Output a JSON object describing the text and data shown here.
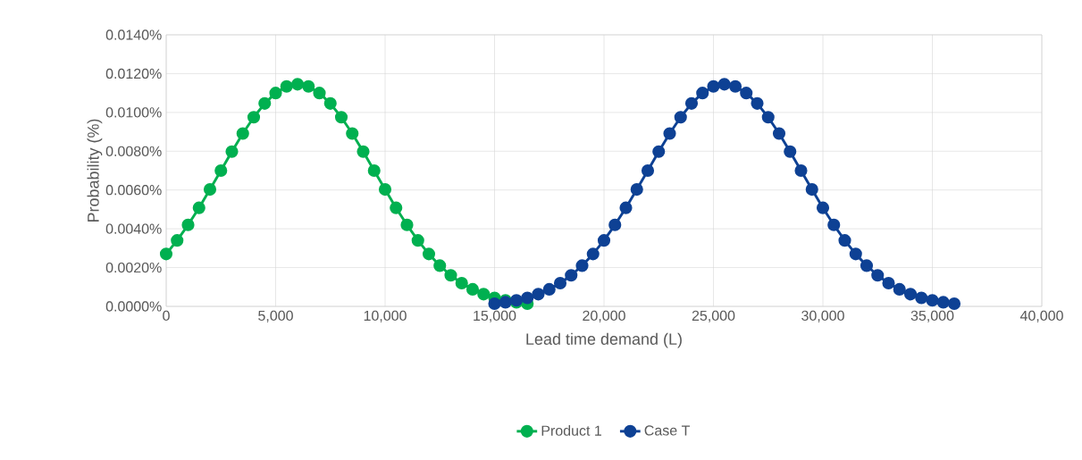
{
  "chart_data": {
    "type": "line",
    "xlabel": "Lead time demand (L)",
    "ylabel": "Probability (%)",
    "xlim": [
      0,
      40000
    ],
    "xticks": [
      0,
      {
        "value": 5000,
        "label": "5,000"
      },
      {
        "value": 10000,
        "label": "10,000"
      },
      {
        "value": 15000,
        "label": "15,000"
      },
      {
        "value": 20000,
        "label": "20,000"
      },
      {
        "value": 25000,
        "label": "25,000"
      },
      {
        "value": 30000,
        "label": "30,000"
      },
      {
        "value": 35000,
        "label": "35,000"
      },
      {
        "value": 40000,
        "label": "40,000"
      }
    ],
    "ylim": [
      0,
      0.014
    ],
    "yticks": [
      {
        "value": 0,
        "label": "0.0000%"
      },
      {
        "value": 0.002,
        "label": "0.0020%"
      },
      {
        "value": 0.004,
        "label": "0.0040%"
      },
      {
        "value": 0.006,
        "label": "0.0060%"
      },
      {
        "value": 0.008,
        "label": "0.0080%"
      },
      {
        "value": 0.01,
        "label": "0.0100%"
      },
      {
        "value": 0.012,
        "label": "0.0120%"
      },
      {
        "value": 0.014,
        "label": "0.0140%"
      }
    ],
    "grid": true,
    "legend": "bottom",
    "marker": "circle",
    "line_style": "solid",
    "series": [
      {
        "name": "Product 1",
        "color": "#00b050",
        "x": [
          0,
          500,
          1000,
          1500,
          2000,
          2500,
          3000,
          3500,
          4000,
          4500,
          5000,
          5500,
          6000,
          6500,
          7000,
          7500,
          8000,
          8500,
          9000,
          9500,
          10000,
          10500,
          11000,
          11500,
          12000,
          12500,
          13000,
          13500,
          14000,
          14500,
          15000,
          15500,
          16000,
          16500
        ],
        "values": [
          0.0027,
          0.0034,
          0.0042,
          0.00508,
          0.00603,
          0.007,
          0.00798,
          0.00891,
          0.00975,
          0.01046,
          0.011,
          0.01134,
          0.01145,
          0.01134,
          0.011,
          0.01046,
          0.00975,
          0.00891,
          0.00798,
          0.007,
          0.00603,
          0.00508,
          0.0042,
          0.0034,
          0.0027,
          0.0021,
          0.0016,
          0.0012,
          0.00088,
          0.00063,
          0.00044,
          0.00031,
          0.00021,
          0.00014
        ]
      },
      {
        "name": "Case T",
        "color": "#0e4194",
        "x": [
          15000,
          15500,
          16000,
          16500,
          17000,
          17500,
          18000,
          18500,
          19000,
          19500,
          20000,
          20500,
          21000,
          21500,
          22000,
          22500,
          23000,
          23500,
          24000,
          24500,
          25000,
          25500,
          26000,
          26500,
          27000,
          27500,
          28000,
          28500,
          29000,
          29500,
          30000,
          30500,
          31000,
          31500,
          32000,
          32500,
          33000,
          33500,
          34000,
          34500,
          35000,
          35500,
          36000
        ],
        "values": [
          0.00014,
          0.00021,
          0.00031,
          0.00044,
          0.00063,
          0.00088,
          0.0012,
          0.0016,
          0.0021,
          0.0027,
          0.0034,
          0.0042,
          0.00508,
          0.00603,
          0.007,
          0.00798,
          0.00891,
          0.00975,
          0.01046,
          0.011,
          0.01134,
          0.01145,
          0.01134,
          0.011,
          0.01046,
          0.00975,
          0.00891,
          0.00798,
          0.007,
          0.00603,
          0.00508,
          0.0042,
          0.0034,
          0.0027,
          0.0021,
          0.0016,
          0.0012,
          0.00088,
          0.00063,
          0.00044,
          0.00031,
          0.00021,
          0.00014
        ]
      }
    ]
  }
}
